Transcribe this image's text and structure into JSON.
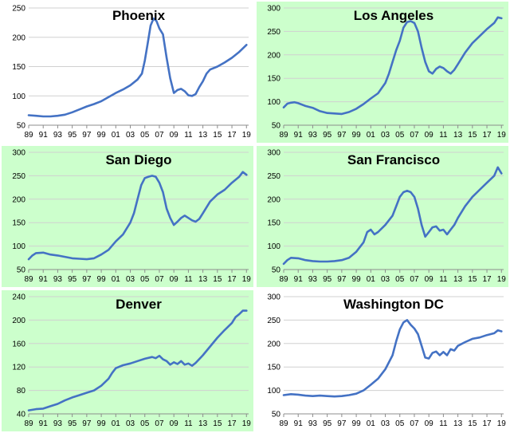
{
  "colors": {
    "line": "#4472C4",
    "grid": "#D0D0D0",
    "axis": "#8C8C8C",
    "panel_green": "#CCFFCC",
    "panel_white": "#FFFFFF"
  },
  "chart_data": [
    {
      "type": "line",
      "title": "Phoenix",
      "background": "white",
      "xticks": [
        "89",
        "91",
        "93",
        "95",
        "97",
        "99",
        "01",
        "03",
        "05",
        "07",
        "09",
        "11",
        "13",
        "15",
        "17",
        "19"
      ],
      "yticks": [
        "50",
        "100",
        "150",
        "200",
        "250"
      ],
      "ylim": [
        50,
        250
      ],
      "xlim": [
        1989,
        2019.3
      ],
      "grid": true,
      "series": [
        {
          "x": [
            1989,
            1990,
            1991,
            1992,
            1993,
            1994,
            1995,
            1996,
            1997,
            1998,
            1999,
            2000,
            2001,
            2002,
            2003,
            2004,
            2004.6,
            2005,
            2005.4,
            2005.8,
            2006.2,
            2006.6,
            2007,
            2007.5,
            2008,
            2008.5,
            2009,
            2009.5,
            2010,
            2010.5,
            2011,
            2011.5,
            2012,
            2012.5,
            2013,
            2013.5,
            2014,
            2015,
            2016,
            2017,
            2018,
            2019
          ],
          "values": [
            67,
            66,
            65,
            65,
            66,
            68,
            72,
            77,
            82,
            86,
            91,
            98,
            105,
            111,
            118,
            128,
            138,
            160,
            190,
            220,
            232,
            228,
            215,
            205,
            165,
            130,
            105,
            110,
            112,
            108,
            101,
            100,
            103,
            115,
            125,
            138,
            145,
            150,
            157,
            165,
            175,
            187
          ]
        }
      ]
    },
    {
      "type": "line",
      "title": "Los Angeles",
      "background": "green",
      "xticks": [
        "89",
        "91",
        "93",
        "95",
        "97",
        "99",
        "01",
        "03",
        "05",
        "07",
        "09",
        "11",
        "13",
        "15",
        "17",
        "19"
      ],
      "yticks": [
        "50",
        "100",
        "150",
        "200",
        "250",
        "300"
      ],
      "ylim": [
        50,
        300
      ],
      "xlim": [
        1989,
        2019.3
      ],
      "grid": true,
      "series": [
        {
          "x": [
            1989,
            1989.5,
            1990,
            1990.5,
            1991,
            1992,
            1993,
            1994,
            1995,
            1996,
            1997,
            1998,
            1999,
            2000,
            2001,
            2002,
            2003,
            2003.5,
            2004,
            2004.5,
            2005,
            2005.5,
            2006,
            2006.5,
            2007,
            2007.5,
            2008,
            2008.5,
            2009,
            2009.5,
            2010,
            2010.5,
            2011,
            2011.5,
            2012,
            2012.5,
            2013,
            2014,
            2015,
            2016,
            2017,
            2018,
            2018.5,
            2019
          ],
          "values": [
            88,
            96,
            98,
            99,
            97,
            91,
            87,
            80,
            76,
            75,
            74,
            78,
            85,
            95,
            107,
            118,
            140,
            160,
            185,
            210,
            230,
            258,
            270,
            272,
            268,
            250,
            215,
            185,
            165,
            160,
            170,
            175,
            172,
            165,
            160,
            168,
            180,
            205,
            225,
            240,
            255,
            268,
            280,
            278
          ]
        }
      ]
    },
    {
      "type": "line",
      "title": "San Diego",
      "background": "green",
      "xticks": [
        "89",
        "91",
        "93",
        "95",
        "97",
        "99",
        "01",
        "03",
        "05",
        "07",
        "09",
        "11",
        "13",
        "15",
        "17",
        "19"
      ],
      "yticks": [
        "50",
        "100",
        "150",
        "200",
        "250",
        "300"
      ],
      "ylim": [
        50,
        300
      ],
      "xlim": [
        1989,
        2019.3
      ],
      "grid": true,
      "series": [
        {
          "x": [
            1989,
            1989.5,
            1990,
            1991,
            1992,
            1993,
            1994,
            1995,
            1996,
            1997,
            1998,
            1999,
            2000,
            2001,
            2002,
            2003,
            2003.5,
            2004,
            2004.5,
            2005,
            2005.5,
            2006,
            2006.5,
            2007,
            2007.5,
            2008,
            2008.5,
            2009,
            2009.5,
            2010,
            2010.5,
            2011,
            2011.5,
            2012,
            2012.5,
            2013,
            2014,
            2015,
            2016,
            2017,
            2018,
            2018.5,
            2019
          ],
          "values": [
            72,
            80,
            85,
            86,
            82,
            80,
            77,
            74,
            73,
            72,
            74,
            82,
            92,
            110,
            125,
            150,
            170,
            200,
            230,
            245,
            248,
            250,
            248,
            235,
            215,
            180,
            160,
            145,
            152,
            160,
            165,
            160,
            155,
            152,
            158,
            170,
            195,
            210,
            220,
            235,
            248,
            258,
            252
          ]
        }
      ]
    },
    {
      "type": "line",
      "title": "San Francisco",
      "background": "green",
      "xticks": [
        "89",
        "91",
        "93",
        "95",
        "97",
        "99",
        "01",
        "03",
        "05",
        "07",
        "09",
        "11",
        "13",
        "15",
        "17",
        "19"
      ],
      "yticks": [
        "50",
        "100",
        "150",
        "200",
        "250",
        "300"
      ],
      "ylim": [
        50,
        300
      ],
      "xlim": [
        1989,
        2019.3
      ],
      "grid": true,
      "series": [
        {
          "x": [
            1989,
            1989.5,
            1990,
            1991,
            1992,
            1993,
            1994,
            1995,
            1996,
            1997,
            1998,
            1999,
            2000,
            2000.5,
            2001,
            2001.5,
            2002,
            2003,
            2004,
            2004.5,
            2005,
            2005.5,
            2006,
            2006.5,
            2007,
            2007.5,
            2008,
            2008.5,
            2009,
            2009.5,
            2010,
            2010.5,
            2011,
            2011.5,
            2012,
            2012.5,
            2013,
            2014,
            2015,
            2016,
            2017,
            2018,
            2018.5,
            2019
          ],
          "values": [
            62,
            70,
            75,
            74,
            70,
            68,
            67,
            67,
            68,
            70,
            75,
            88,
            108,
            130,
            135,
            125,
            130,
            145,
            165,
            185,
            205,
            215,
            218,
            215,
            205,
            180,
            145,
            120,
            130,
            140,
            142,
            133,
            135,
            125,
            135,
            145,
            160,
            185,
            205,
            220,
            235,
            250,
            268,
            255
          ]
        }
      ]
    },
    {
      "type": "line",
      "title": "Denver",
      "background": "green",
      "xticks": [
        "89",
        "91",
        "93",
        "95",
        "97",
        "99",
        "01",
        "03",
        "05",
        "07",
        "09",
        "11",
        "13",
        "15",
        "17",
        "19"
      ],
      "yticks": [
        "40",
        "80",
        "120",
        "160",
        "200",
        "240"
      ],
      "ylim": [
        40,
        240
      ],
      "xlim": [
        1989,
        2019.3
      ],
      "grid": true,
      "series": [
        {
          "x": [
            1989,
            1990,
            1991,
            1992,
            1993,
            1994,
            1995,
            1996,
            1997,
            1998,
            1999,
            2000,
            2000.5,
            2001,
            2002,
            2003,
            2004,
            2005,
            2006,
            2006.5,
            2007,
            2007.5,
            2008,
            2008.5,
            2009,
            2009.5,
            2010,
            2010.5,
            2011,
            2011.5,
            2012,
            2013,
            2014,
            2015,
            2016,
            2017,
            2017.5,
            2018,
            2018.5,
            2019
          ],
          "values": [
            46,
            48,
            49,
            53,
            57,
            63,
            68,
            72,
            76,
            80,
            88,
            100,
            110,
            118,
            123,
            126,
            130,
            134,
            137,
            135,
            139,
            133,
            130,
            124,
            128,
            125,
            130,
            124,
            126,
            122,
            127,
            140,
            155,
            170,
            183,
            195,
            205,
            210,
            216,
            216
          ]
        }
      ]
    },
    {
      "type": "line",
      "title": "Washington DC",
      "background": "white",
      "xticks": [
        "89",
        "91",
        "93",
        "95",
        "97",
        "99",
        "01",
        "03",
        "05",
        "07",
        "09",
        "11",
        "13",
        "15",
        "17",
        "19"
      ],
      "yticks": [
        "50",
        "100",
        "150",
        "200",
        "250",
        "300"
      ],
      "ylim": [
        50,
        300
      ],
      "xlim": [
        1989,
        2019.3
      ],
      "grid": true,
      "series": [
        {
          "x": [
            1989,
            1990,
            1991,
            1992,
            1993,
            1994,
            1995,
            1996,
            1997,
            1998,
            1999,
            2000,
            2001,
            2002,
            2003,
            2004,
            2004.5,
            2005,
            2005.5,
            2006,
            2006.5,
            2007,
            2007.5,
            2008,
            2008.5,
            2009,
            2009.5,
            2010,
            2010.5,
            2011,
            2011.5,
            2012,
            2012.5,
            2013,
            2014,
            2015,
            2016,
            2017,
            2018,
            2018.5,
            2019
          ],
          "values": [
            90,
            92,
            91,
            89,
            88,
            89,
            88,
            87,
            88,
            90,
            93,
            100,
            112,
            125,
            145,
            175,
            205,
            230,
            245,
            250,
            240,
            232,
            220,
            195,
            170,
            168,
            180,
            183,
            175,
            182,
            175,
            188,
            185,
            195,
            203,
            210,
            213,
            218,
            222,
            228,
            226
          ]
        }
      ]
    }
  ]
}
